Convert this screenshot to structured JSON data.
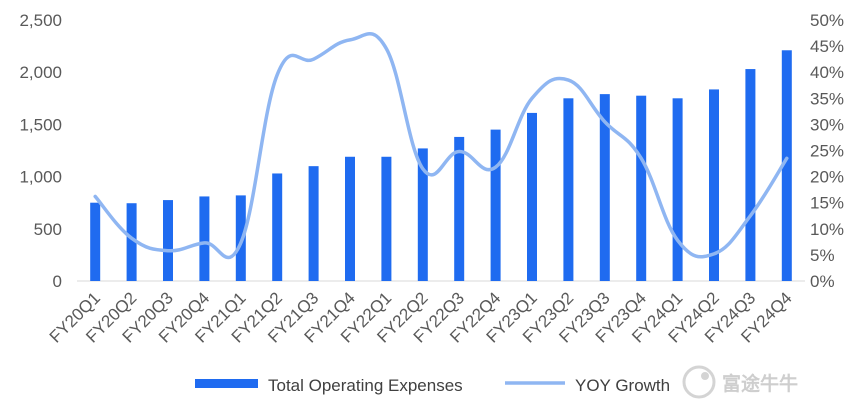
{
  "chart_data": {
    "type": "bar",
    "title": "",
    "xlabel": "",
    "ylabel": "",
    "categories": [
      "FY20Q1",
      "FY20Q2",
      "FY20Q3",
      "FY20Q4",
      "FY21Q1",
      "FY21Q2",
      "FY21Q3",
      "FY21Q4",
      "FY22Q1",
      "FY22Q2",
      "FY22Q3",
      "FY22Q4",
      "FY23Q1",
      "FY23Q2",
      "FY23Q3",
      "FY23Q4",
      "FY24Q1",
      "FY24Q2",
      "FY24Q3",
      "FY24Q4"
    ],
    "series": [
      {
        "name": "Total Operating Expenses",
        "type": "bar",
        "axis": "left",
        "color": "#1f6bf0",
        "values": [
          750,
          745,
          775,
          810,
          820,
          1030,
          1100,
          1190,
          1190,
          1270,
          1380,
          1450,
          1610,
          1750,
          1790,
          1775,
          1750,
          1835,
          2030,
          2210
        ]
      },
      {
        "name": "YOY Growth",
        "type": "line",
        "axis": "right",
        "color": "#8fb6f2",
        "values": [
          16.2,
          8.2,
          5.8,
          7.3,
          7.3,
          39.5,
          42.5,
          46.2,
          44.5,
          21.5,
          24.8,
          21.8,
          35.0,
          38.5,
          30.5,
          23.5,
          7.8,
          5.2,
          12.5,
          23.5
        ]
      }
    ],
    "y_left": {
      "ylim": [
        0,
        2500
      ],
      "ticks": [
        "0",
        "500",
        "1,000",
        "1,500",
        "2,000",
        "2,500"
      ]
    },
    "y_right": {
      "ylim": [
        0,
        50
      ],
      "ticks": [
        "0%",
        "5%",
        "10%",
        "15%",
        "20%",
        "25%",
        "30%",
        "35%",
        "40%",
        "45%",
        "50%"
      ]
    },
    "grid": false,
    "legend": "bottom-center"
  },
  "watermark": {
    "text": "富途牛牛"
  }
}
